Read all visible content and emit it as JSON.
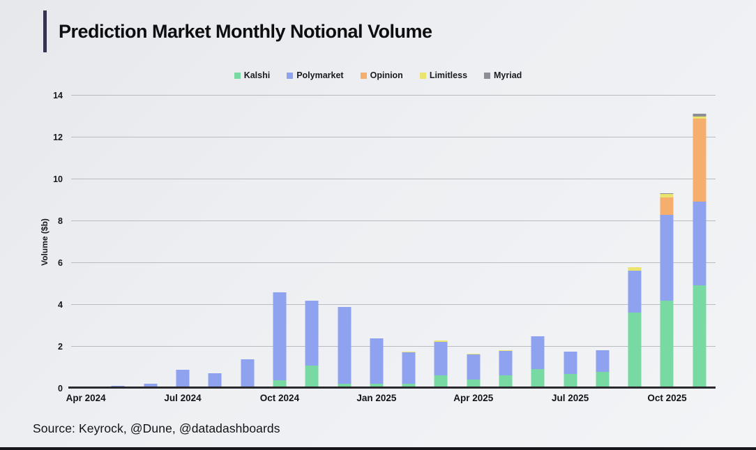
{
  "title": "Prediction Market Monthly Notional Volume",
  "source": "Source: Keyrock, @Dune, @datadashboards",
  "colors": {
    "accent_bar": "#34344e",
    "grid": "#b8bbc2",
    "axis_line": "#2a2a2e",
    "kalshi": "#79d9a3",
    "polymarket": "#8fa2ef",
    "opinion": "#f5ae6b",
    "limitless": "#e9e46e",
    "myriad": "#8d8d95"
  },
  "chart_data": {
    "type": "bar",
    "stacked": true,
    "title": "Prediction Market Monthly Notional Volume",
    "xlabel": "",
    "ylabel": "Volume ($b)",
    "ylim": [
      0,
      14
    ],
    "yticks": [
      0,
      2,
      4,
      6,
      8,
      10,
      12,
      14
    ],
    "grid": true,
    "legend_position": "top",
    "categories": [
      "Apr 2024",
      "May 2024",
      "Jun 2024",
      "Jul 2024",
      "Aug 2024",
      "Sep 2024",
      "Oct 2024",
      "Nov 2024",
      "Dec 2024",
      "Jan 2025",
      "Feb 2025",
      "Mar 2025",
      "Apr 2025",
      "May 2025",
      "Jun 2025",
      "Jul 2025",
      "Aug 2025",
      "Sep 2025",
      "Oct 2025",
      "Nov 2025"
    ],
    "x_tick_labels_shown": [
      "Apr 2024",
      "Jul 2024",
      "Oct 2024",
      "Jan 2025",
      "Apr 2025",
      "Jul 2025",
      "Oct 2025"
    ],
    "x_tick_indices": [
      0,
      3,
      6,
      9,
      12,
      15,
      18
    ],
    "series": [
      {
        "name": "Kalshi",
        "color": "#79d9a3",
        "values": [
          0,
          0,
          0,
          0,
          0,
          0,
          0.4,
          1.1,
          0.25,
          0.22,
          0.22,
          0.65,
          0.42,
          0.62,
          0.92,
          0.7,
          0.81,
          3.65,
          4.2,
          4.95
        ]
      },
      {
        "name": "Polymarket",
        "color": "#8fa2ef",
        "values": [
          0.07,
          0.12,
          0.25,
          0.9,
          0.75,
          1.4,
          4.2,
          3.1,
          3.65,
          2.18,
          1.5,
          1.6,
          1.2,
          1.18,
          1.58,
          1.08,
          1.04,
          2.0,
          4.1,
          4.0
        ]
      },
      {
        "name": "Opinion",
        "color": "#f5ae6b",
        "values": [
          0,
          0,
          0,
          0,
          0,
          0,
          0,
          0,
          0,
          0,
          0,
          0,
          0,
          0,
          0,
          0,
          0,
          0,
          0.85,
          3.95
        ]
      },
      {
        "name": "Limitless",
        "color": "#e9e46e",
        "values": [
          0,
          0,
          0,
          0,
          0,
          0,
          0,
          0,
          0,
          0,
          0.05,
          0.05,
          0.05,
          0.05,
          0,
          0,
          0,
          0.15,
          0.15,
          0.1
        ]
      },
      {
        "name": "Myriad",
        "color": "#8d8d95",
        "values": [
          0,
          0,
          0,
          0,
          0,
          0,
          0,
          0,
          0,
          0,
          0,
          0,
          0,
          0,
          0,
          0,
          0,
          0,
          0.05,
          0.15
        ]
      }
    ]
  }
}
